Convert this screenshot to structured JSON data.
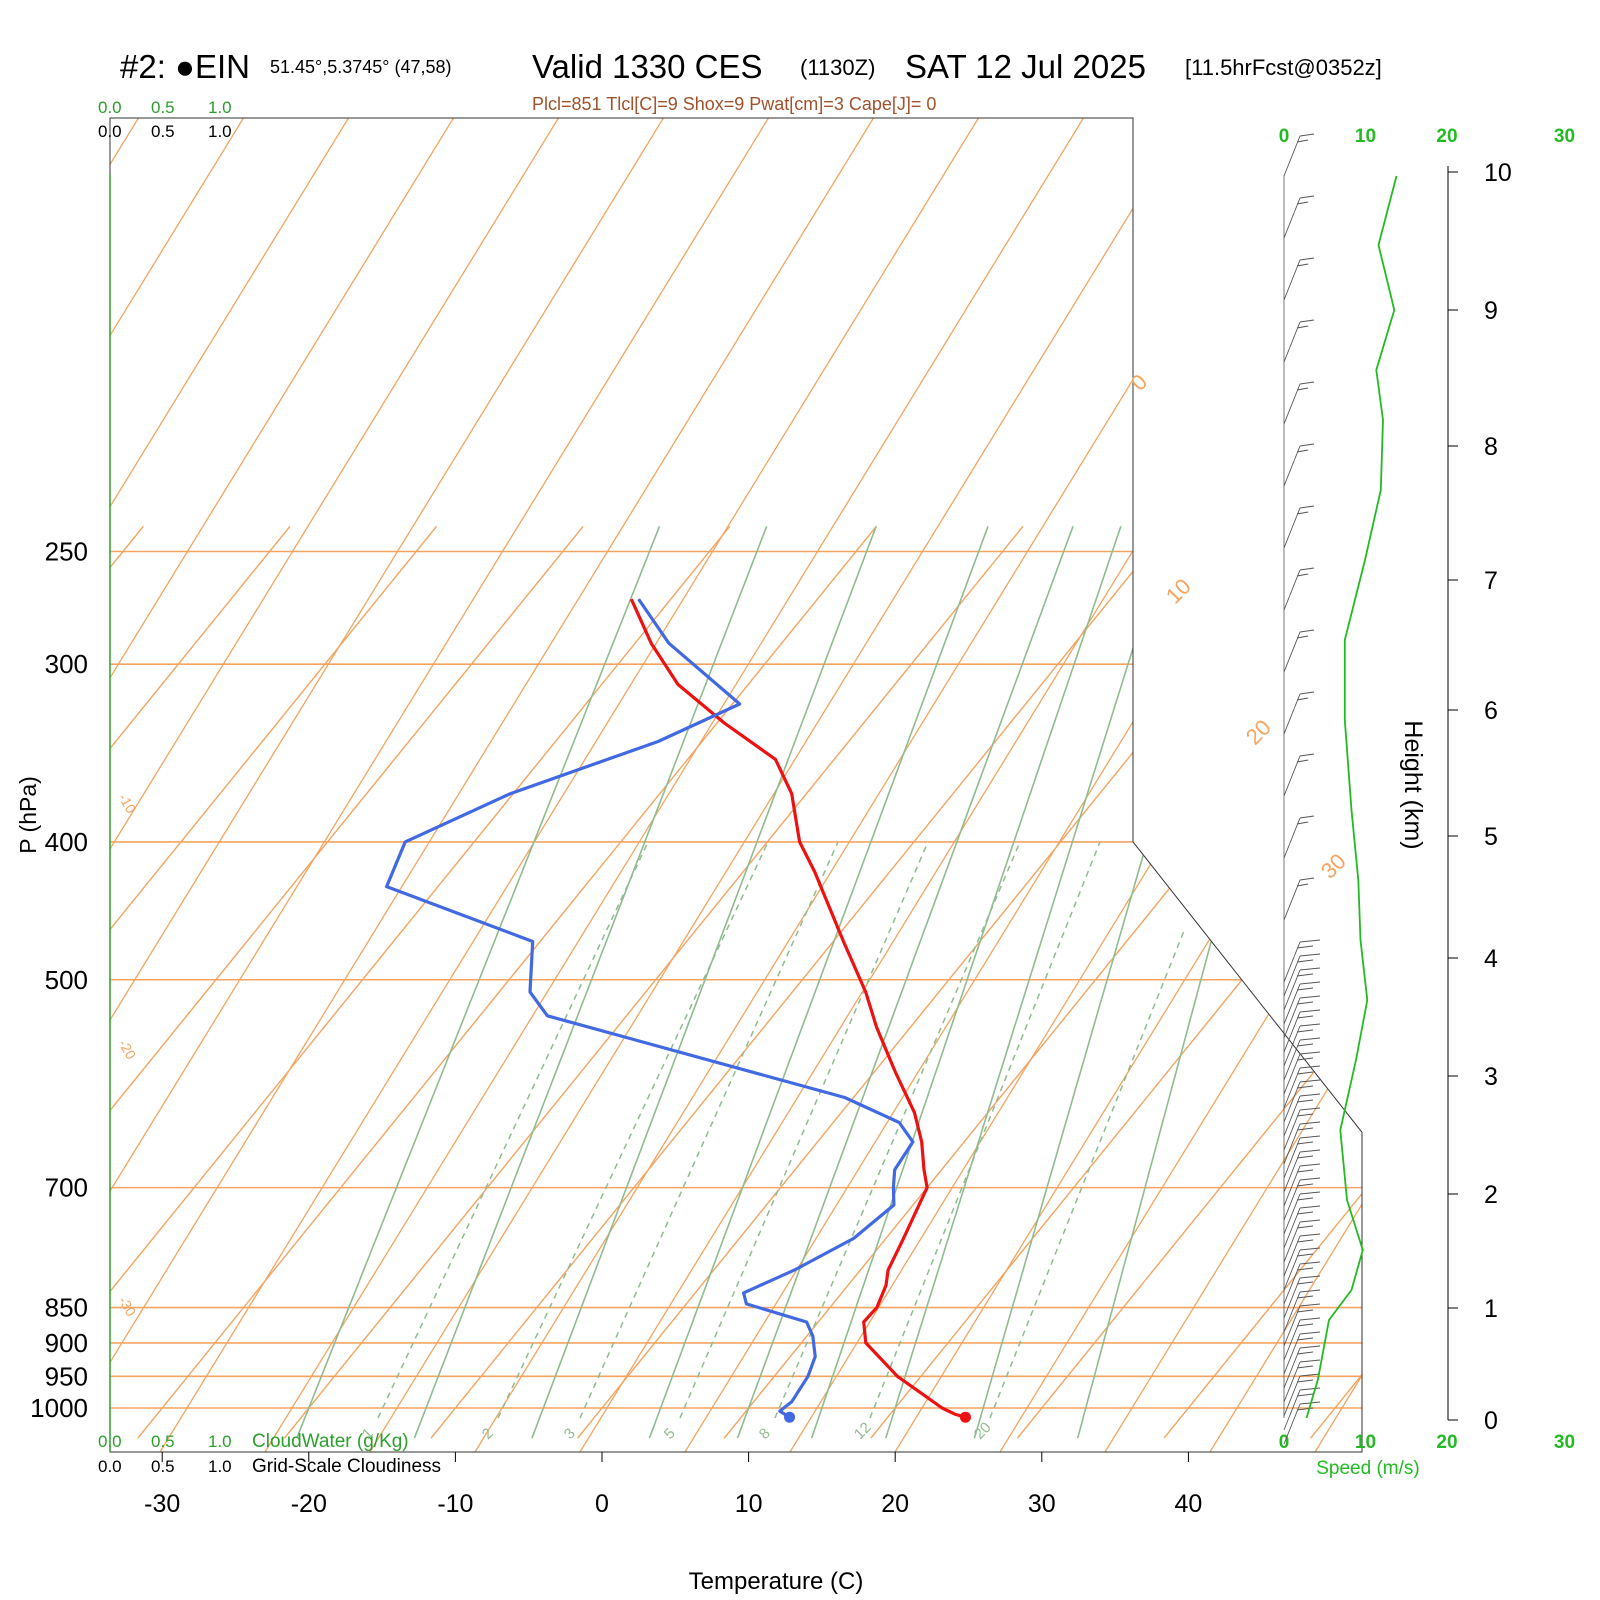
{
  "header": {
    "station_prefix": "#2: ●EIN",
    "coords": "51.45°,5.3745° (47,58)",
    "valid_main": "Valid 1330 CES",
    "valid_z": "(1130Z)",
    "date": "SAT 12 Jul 2025",
    "fcst": "[11.5hrFcst@0352z]",
    "indices": "Plcl=851 Tlcl[C]=9 Shox=9 Pwat[cm]=3 Cape[J]= 0"
  },
  "colors": {
    "temperature": "#ee1111",
    "dewpoint": "#4169e1",
    "isotherm": "#f4a460",
    "dry_adiabat": "#8fbc8f",
    "mixing_ratio": "#8fbc8f",
    "wind_speed": "#22bb22",
    "cloud_scale_green": "#2ca02c"
  },
  "labels": {
    "p_axis": "P (hPa)",
    "t_axis": "Temperature (C)",
    "h_axis": "Height (km)",
    "speed_axis": "Speed (m/s)",
    "cloud_water": "CloudWater (g/Kg)",
    "cloudiness": "Grid-Scale Cloudiness",
    "scale_top_green": [
      "0.0",
      "0.5",
      "1.0"
    ],
    "scale_top_black": [
      "0.0",
      "0.5",
      "1.0"
    ],
    "speed_ticks": [
      "0",
      "10",
      "20",
      "30"
    ]
  },
  "chart_data": {
    "type": "line",
    "diagram": "skew-T log-P",
    "y_scale": "log",
    "pressure_levels_hPa": [
      250,
      300,
      400,
      500,
      700,
      850,
      900,
      950,
      1000
    ],
    "temperature_ticks_C": [
      -30,
      -20,
      -10,
      0,
      10,
      20,
      30,
      40
    ],
    "height_ticks_km": [
      0,
      1,
      2,
      3,
      4,
      5,
      6,
      7,
      8,
      9,
      10
    ],
    "xlabel": "Temperature (C)",
    "ylabel": "P (hPa)",
    "skew_isotherm_labels_C": [
      -30,
      -20,
      -10,
      0,
      10,
      20,
      30
    ],
    "mixing_ratio_labels_gkg": [
      1,
      2,
      3,
      5,
      8,
      12,
      20
    ],
    "series": [
      {
        "name": "Temperature",
        "points": [
          [
            1015,
            25.3
          ],
          [
            1010,
            24.4
          ],
          [
            1000,
            23.2
          ],
          [
            950,
            18.4
          ],
          [
            900,
            14.4
          ],
          [
            870,
            13.1
          ],
          [
            850,
            13.2
          ],
          [
            820,
            12.6
          ],
          [
            800,
            11.9
          ],
          [
            760,
            11.2
          ],
          [
            700,
            10.0
          ],
          [
            680,
            8.8
          ],
          [
            650,
            7.1
          ],
          [
            620,
            5.0
          ],
          [
            580,
            1.4
          ],
          [
            540,
            -2.3
          ],
          [
            510,
            -5.0
          ],
          [
            470,
            -9.3
          ],
          [
            420,
            -15.1
          ],
          [
            400,
            -17.8
          ],
          [
            370,
            -21.0
          ],
          [
            350,
            -24.0
          ],
          [
            330,
            -29.5
          ],
          [
            310,
            -34.8
          ],
          [
            290,
            -38.9
          ],
          [
            270,
            -42.7
          ]
        ]
      },
      {
        "name": "Dewpoint",
        "points": [
          [
            1015,
            13.3
          ],
          [
            1005,
            12.3
          ],
          [
            990,
            12.6
          ],
          [
            950,
            12.3
          ],
          [
            920,
            11.7
          ],
          [
            890,
            10.4
          ],
          [
            870,
            9.2
          ],
          [
            845,
            4.1
          ],
          [
            830,
            3.3
          ],
          [
            800,
            5.5
          ],
          [
            760,
            7.8
          ],
          [
            720,
            8.7
          ],
          [
            700,
            7.7
          ],
          [
            680,
            6.8
          ],
          [
            650,
            6.5
          ],
          [
            630,
            4.5
          ],
          [
            605,
            -0.6
          ],
          [
            530,
            -25.4
          ],
          [
            510,
            -27.9
          ],
          [
            470,
            -30.5
          ],
          [
            430,
            -43.5
          ],
          [
            400,
            -44.7
          ],
          [
            370,
            -40.2
          ],
          [
            340,
            -33.0
          ],
          [
            320,
            -29.5
          ],
          [
            290,
            -37.7
          ],
          [
            270,
            -42.2
          ]
        ]
      }
    ],
    "cloud_scale": [
      0.0,
      0.5,
      1.0
    ]
  }
}
